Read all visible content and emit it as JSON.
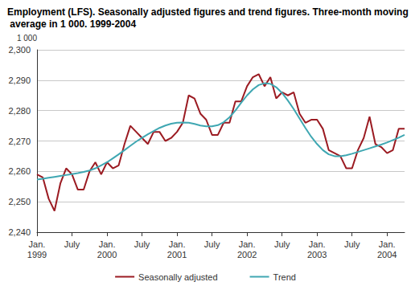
{
  "chart_data": {
    "type": "line",
    "title": "Employment (LFS). Seasonally adjusted figures and trend figures. Three-month moving average in 1 000. 1999-2004",
    "ylabel": "1 000",
    "categories": [
      "Jan.\n1999",
      null,
      null,
      null,
      null,
      null,
      "July",
      null,
      null,
      null,
      null,
      null,
      "Jan.\n2000",
      null,
      null,
      null,
      null,
      null,
      "July",
      null,
      null,
      null,
      null,
      null,
      "Jan.\n2001",
      null,
      null,
      null,
      null,
      null,
      "July",
      null,
      null,
      null,
      null,
      null,
      "Jan.\n2002",
      null,
      null,
      null,
      null,
      null,
      "July",
      null,
      null,
      null,
      null,
      null,
      "Jan.\n2003",
      null,
      null,
      null,
      null,
      null,
      "July",
      null,
      null,
      null,
      null,
      null,
      "Jan.\n2004",
      null,
      null,
      null
    ],
    "series": [
      {
        "name": "Seasonally adjusted",
        "color": "#9b1b22",
        "values": [
          2259,
          2258,
          2251,
          2247,
          2256,
          2261,
          2259,
          2254,
          2254,
          2260,
          2263,
          2259,
          2263,
          2261,
          2262,
          2269,
          2275,
          2273,
          2271,
          2269,
          2273,
          2273,
          2270,
          2271,
          2273,
          2276,
          2285,
          2284,
          2279,
          2277,
          2272,
          2272,
          2276,
          2276,
          2283,
          2283,
          2288,
          2291,
          2292,
          2288,
          2291,
          2284,
          2286,
          2285,
          2286,
          2279,
          2276,
          2277,
          2277,
          2274,
          2267,
          2266,
          2265,
          2261,
          2261,
          2267,
          2271,
          2278,
          2269,
          2268,
          2266,
          2267,
          2274,
          2274
        ]
      },
      {
        "name": "Trend",
        "color": "#3fa7b2",
        "values": [
          2257.3,
          2257.6,
          2257.9,
          2258.2,
          2258.5,
          2258.8,
          2259.1,
          2259.4,
          2259.8,
          2260.3,
          2261,
          2262,
          2263,
          2264.3,
          2265.6,
          2267,
          2268.4,
          2269.8,
          2271,
          2272.2,
          2273.3,
          2274.3,
          2275.1,
          2275.7,
          2276,
          2276.1,
          2276,
          2275.6,
          2275.1,
          2274.8,
          2274.8,
          2275.2,
          2276.2,
          2277.8,
          2280,
          2282.6,
          2285,
          2287,
          2288.4,
          2289,
          2288.8,
          2287.7,
          2285.8,
          2283.3,
          2280.5,
          2277.4,
          2274.3,
          2271.4,
          2269,
          2267,
          2265.6,
          2265,
          2265,
          2265.3,
          2265.8,
          2266.4,
          2267,
          2267.6,
          2268.2,
          2268.8,
          2269.5,
          2270.3,
          2271.1,
          2272
        ]
      }
    ],
    "ylim": [
      2240,
      2300
    ],
    "yticks": [
      2240,
      2250,
      2260,
      2270,
      2280,
      2290,
      2300
    ],
    "grid": true,
    "legend": "bottom"
  }
}
